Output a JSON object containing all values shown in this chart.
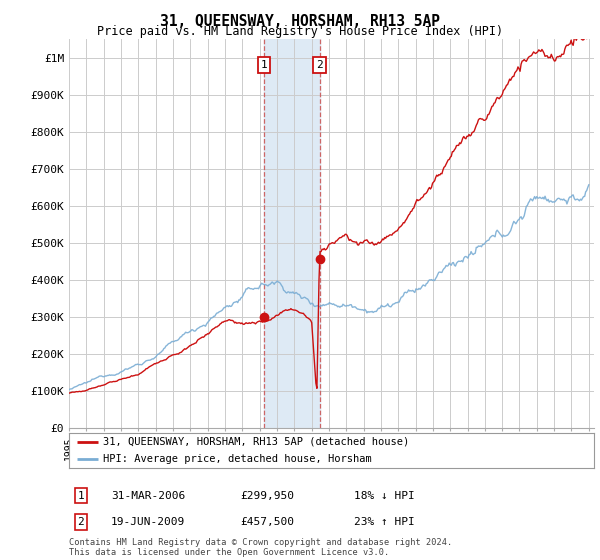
{
  "title": "31, QUEENSWAY, HORSHAM, RH13 5AP",
  "subtitle": "Price paid vs. HM Land Registry's House Price Index (HPI)",
  "ylim": [
    0,
    1050000
  ],
  "xlim_start": 1995.0,
  "xlim_end": 2025.3,
  "transaction1": {
    "date": 2006.25,
    "price": 299950,
    "label": "1"
  },
  "transaction2": {
    "date": 2009.46,
    "price": 457500,
    "label": "2"
  },
  "legend_line1": "31, QUEENSWAY, HORSHAM, RH13 5AP (detached house)",
  "legend_line2": "HPI: Average price, detached house, Horsham",
  "table_row1": [
    "1",
    "31-MAR-2006",
    "£299,950",
    "18% ↓ HPI"
  ],
  "table_row2": [
    "2",
    "19-JUN-2009",
    "£457,500",
    "23% ↑ HPI"
  ],
  "footer": "Contains HM Land Registry data © Crown copyright and database right 2024.\nThis data is licensed under the Open Government Licence v3.0.",
  "hpi_color": "#7aadd4",
  "price_color": "#cc1111",
  "dash_color": "#cc6666",
  "highlight_color": "#deeaf5",
  "grid_color": "#cccccc",
  "background_color": "#ffffff",
  "shade_x1": 2006.25,
  "shade_x2": 2009.46
}
